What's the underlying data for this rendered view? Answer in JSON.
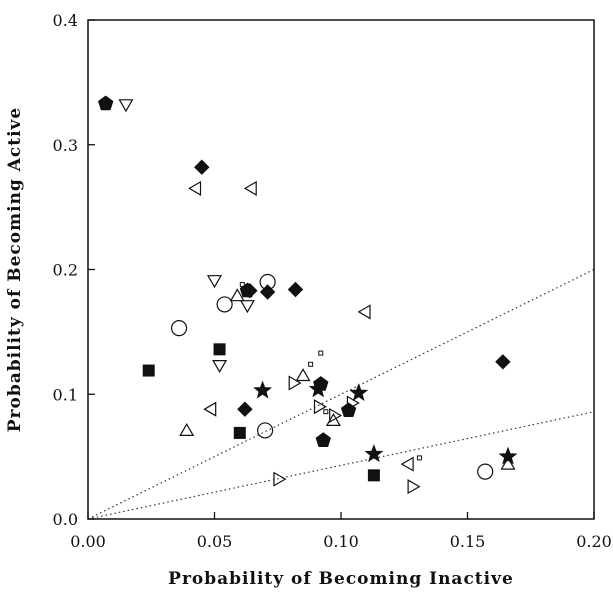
{
  "chart_data": {
    "type": "scatter",
    "title": "",
    "xlabel": "Probability of Becoming Inactive",
    "ylabel": "Probability of Becoming Active",
    "xlim": [
      0,
      0.2
    ],
    "ylim": [
      0,
      0.4
    ],
    "x_ticks": [
      "0.00",
      "0.05",
      "0.10",
      "0.15",
      "0.20"
    ],
    "y_ticks": [
      "0.0",
      "0.1",
      "0.2",
      "0.3",
      "0.4"
    ],
    "grid": false,
    "legend": "none",
    "reference_lines": [
      {
        "style": "dotted",
        "x": [
          0,
          0.2
        ],
        "y": [
          0,
          0.2
        ]
      },
      {
        "style": "dotted",
        "x": [
          0,
          0.2
        ],
        "y": [
          0,
          0.086
        ]
      }
    ],
    "series": [
      {
        "marker": "filled-pentagon",
        "points": [
          [
            0.007,
            0.333
          ],
          [
            0.063,
            0.183
          ],
          [
            0.092,
            0.108
          ],
          [
            0.093,
            0.063
          ],
          [
            0.103,
            0.087
          ]
        ]
      },
      {
        "marker": "open-triangle-down",
        "points": [
          [
            0.015,
            0.333
          ],
          [
            0.05,
            0.192
          ],
          [
            0.052,
            0.124
          ],
          [
            0.063,
            0.172
          ]
        ]
      },
      {
        "marker": "filled-diamond",
        "points": [
          [
            0.045,
            0.282
          ],
          [
            0.064,
            0.183
          ],
          [
            0.071,
            0.182
          ],
          [
            0.082,
            0.184
          ],
          [
            0.062,
            0.088
          ],
          [
            0.164,
            0.126
          ]
        ]
      },
      {
        "marker": "open-triangle-left",
        "points": [
          [
            0.043,
            0.265
          ],
          [
            0.065,
            0.265
          ],
          [
            0.11,
            0.166
          ],
          [
            0.049,
            0.088
          ],
          [
            0.127,
            0.044
          ]
        ]
      },
      {
        "marker": "open-circle",
        "points": [
          [
            0.036,
            0.153
          ],
          [
            0.054,
            0.172
          ],
          [
            0.071,
            0.19
          ],
          [
            0.07,
            0.071
          ],
          [
            0.157,
            0.038
          ]
        ]
      },
      {
        "marker": "open-triangle-up",
        "points": [
          [
            0.059,
            0.178
          ],
          [
            0.039,
            0.07
          ],
          [
            0.085,
            0.114
          ],
          [
            0.097,
            0.078
          ],
          [
            0.166,
            0.043
          ]
        ]
      },
      {
        "marker": "small-open-square",
        "points": [
          [
            0.061,
            0.188
          ],
          [
            0.088,
            0.124
          ],
          [
            0.092,
            0.133
          ],
          [
            0.094,
            0.086
          ],
          [
            0.131,
            0.049
          ]
        ]
      },
      {
        "marker": "filled-square",
        "points": [
          [
            0.024,
            0.119
          ],
          [
            0.052,
            0.136
          ],
          [
            0.06,
            0.069
          ],
          [
            0.113,
            0.035
          ]
        ]
      },
      {
        "marker": "filled-star",
        "points": [
          [
            0.069,
            0.103
          ],
          [
            0.091,
            0.104
          ],
          [
            0.107,
            0.101
          ],
          [
            0.113,
            0.052
          ],
          [
            0.166,
            0.05
          ]
        ]
      },
      {
        "marker": "open-triangle-right",
        "points": [
          [
            0.081,
            0.109
          ],
          [
            0.091,
            0.09
          ],
          [
            0.075,
            0.032
          ],
          [
            0.104,
            0.093
          ],
          [
            0.128,
            0.026
          ],
          [
            0.097,
            0.083
          ]
        ]
      }
    ]
  }
}
